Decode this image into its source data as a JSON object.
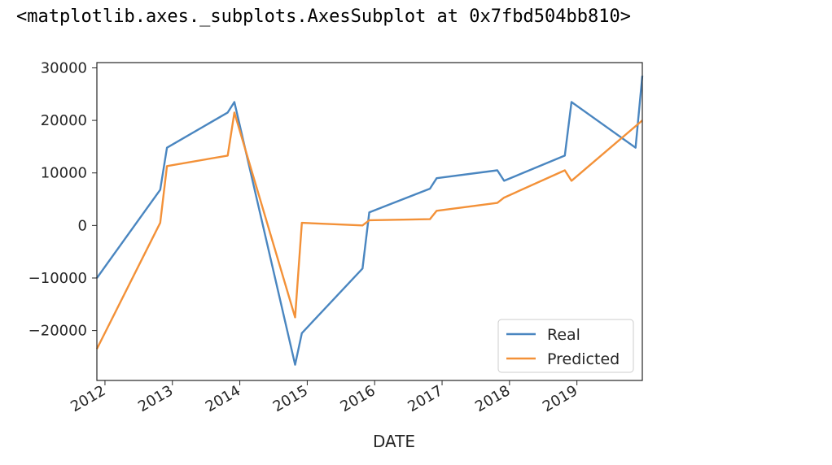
{
  "output_repr": "<matplotlib.axes._subplots.AxesSubplot at 0x7fbd504bb810>",
  "colors": {
    "real": "#4a86c0",
    "predicted": "#f39138"
  },
  "chart_data": {
    "type": "line",
    "xlabel": "DATE",
    "ylabel": "",
    "title": "",
    "ylim": [
      -29500,
      31000
    ],
    "xlim": [
      2011.88,
      2019.97
    ],
    "grid": false,
    "legend_position": "lower-right",
    "x_ticks": [
      2012,
      2013,
      2014,
      2015,
      2016,
      2017,
      2018,
      2019
    ],
    "x_tick_labels": [
      "2012",
      "2013",
      "2014",
      "2015",
      "2016",
      "2017",
      "2018",
      "2019"
    ],
    "y_ticks": [
      -20000,
      -10000,
      0,
      10000,
      20000,
      30000
    ],
    "y_tick_labels": [
      "−20000",
      "−10000",
      "0",
      "10000",
      "20000",
      "30000"
    ],
    "series": [
      {
        "name": "Real",
        "color_key": "real",
        "x": [
          2011.88,
          2012.82,
          2012.92,
          2013.82,
          2013.92,
          2014.82,
          2014.92,
          2015.82,
          2015.92,
          2016.82,
          2016.92,
          2017.82,
          2017.92,
          2018.82,
          2018.92,
          2019.87,
          2019.97
        ],
        "y": [
          -10000,
          6800,
          14800,
          21500,
          23500,
          -26500,
          -20500,
          -8200,
          2500,
          7000,
          9000,
          10500,
          8500,
          13300,
          23500,
          14800,
          28500
        ]
      },
      {
        "name": "Predicted",
        "color_key": "predicted",
        "x": [
          2011.88,
          2012.82,
          2012.92,
          2013.82,
          2013.92,
          2014.82,
          2014.92,
          2015.82,
          2015.92,
          2016.82,
          2016.92,
          2017.82,
          2017.92,
          2018.82,
          2018.92,
          2019.97
        ],
        "y": [
          -23500,
          500,
          11300,
          13300,
          21500,
          -17500,
          500,
          0,
          1000,
          1200,
          2800,
          4300,
          5300,
          10500,
          8500,
          20000
        ]
      }
    ]
  }
}
